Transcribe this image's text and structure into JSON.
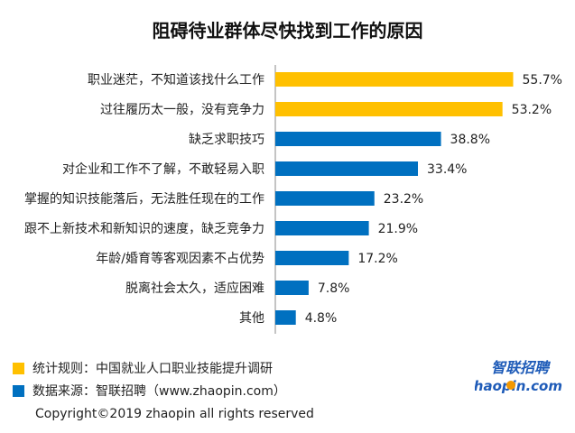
{
  "chart_data": {
    "type": "bar",
    "orientation": "horizontal",
    "title": "阻碍待业群体尽快找到工作的原因",
    "categories": [
      "职业迷茫，不知道该找什么工作",
      "过往履历太一般，没有竞争力",
      "缺乏求职技巧",
      "对企业和工作不了解，不敢轻易入职",
      "掌握的知识技能落后，无法胜任现在的工作",
      "跟不上新技术和新知识的速度，缺乏竞争力",
      "年龄/婚育等客观因素不占优势",
      "脱离社会太久，适应困难",
      "其他"
    ],
    "values": [
      55.7,
      53.2,
      38.8,
      33.4,
      23.2,
      21.9,
      17.2,
      7.8,
      4.8
    ],
    "value_labels": [
      "55.7%",
      "53.2%",
      "38.8%",
      "33.4%",
      "23.2%",
      "21.9%",
      "17.2%",
      "7.8%",
      "4.8%"
    ],
    "bar_colors": [
      "#FFC000",
      "#FFC000",
      "#0070C0",
      "#0070C0",
      "#0070C0",
      "#0070C0",
      "#0070C0",
      "#0070C0",
      "#0070C0"
    ],
    "xlim": [
      0,
      60
    ],
    "grid": false,
    "legend_placement": "bottom-left"
  },
  "legend": [
    {
      "text": "统计规则：中国就业人口职业技能提升调研",
      "color": "#FFC000"
    },
    {
      "text": "数据来源：智联招聘（www.zhaopin.com）",
      "color": "#0070C0"
    }
  ],
  "copyright": "Copyright©2019 zhaopin all rights reserved",
  "logo": {
    "cn_text": "智联招聘",
    "en_text": "zhaopin.com",
    "color_blue": "#1E5BB8",
    "color_orange": "#F39800"
  }
}
